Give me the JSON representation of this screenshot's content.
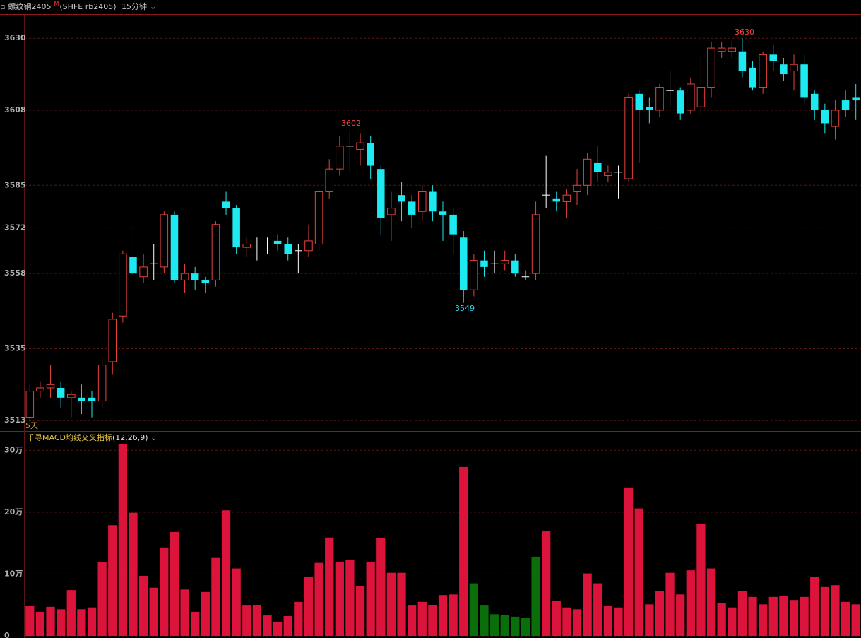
{
  "header": {
    "symbol": "螺纹钢2405",
    "badge": "M",
    "code": "(SHFE rb2405)",
    "period": "15分钟"
  },
  "chart_data": [
    {
      "type": "candlestick",
      "range_label": "5天",
      "up_color": "#e8433e",
      "down_color": "#1de9f0",
      "doji_color": "#ffffff",
      "grid": true,
      "ylim": [
        3509.8,
        3637.4
      ],
      "yticks": [
        3513,
        3535,
        3558,
        3572,
        3585,
        3608,
        3630
      ],
      "open": [
        3514,
        3522,
        3523,
        3523,
        3520,
        3520,
        3520,
        3519,
        3531,
        3545,
        3563,
        3557,
        3561,
        3560,
        3576,
        3556,
        3558,
        3556,
        3556,
        3580,
        3578,
        3566,
        3567,
        3567,
        3568,
        3567,
        3565,
        3565,
        3567,
        3583,
        3590,
        3597,
        3596,
        3598,
        3590,
        3576,
        3582,
        3580,
        3577,
        3583,
        3577,
        3576,
        3569,
        3553,
        3562,
        3561,
        3561,
        3562,
        3557,
        3558,
        3582,
        3581,
        3580,
        3583,
        3585,
        3592,
        3588,
        3589,
        3587,
        3613,
        3609,
        3608,
        3614,
        3614,
        3608,
        3609,
        3615,
        3626,
        3626,
        3626,
        3621,
        3615,
        3625,
        3622,
        3620,
        3622,
        3613,
        3608,
        3603,
        3611,
        3612
      ],
      "high": [
        3524,
        3525,
        3530,
        3525,
        3522,
        3524,
        3522,
        3532,
        3546,
        3565,
        3573,
        3564,
        3567,
        3577,
        3577,
        3561,
        3560,
        3557,
        3574,
        3583,
        3579,
        3569,
        3569,
        3569,
        3570,
        3569,
        3567,
        3573,
        3584,
        3593,
        3600,
        3602,
        3601,
        3600,
        3591,
        3583,
        3586,
        3582,
        3585,
        3585,
        3580,
        3578,
        3571,
        3564,
        3565,
        3565,
        3565,
        3564,
        3559,
        3580,
        3594,
        3583,
        3584,
        3590,
        3595,
        3597,
        3591,
        3591,
        3613,
        3614,
        3612,
        3616,
        3620,
        3615,
        3618,
        3625,
        3629,
        3629,
        3629,
        3630,
        3623,
        3626,
        3628,
        3624,
        3625,
        3625,
        3614,
        3610,
        3611,
        3614,
        3616
      ],
      "low": [
        3512,
        3520,
        3520,
        3517,
        3514,
        3515,
        3514,
        3517,
        3527,
        3543,
        3556,
        3555,
        3556,
        3558,
        3555,
        3552,
        3553,
        3552,
        3554,
        3576,
        3564,
        3563,
        3562,
        3564,
        3565,
        3562,
        3558,
        3563,
        3565,
        3581,
        3588,
        3589,
        3591,
        3587,
        3570,
        3568,
        3574,
        3572,
        3574,
        3574,
        3568,
        3564,
        3549,
        3551,
        3557,
        3558,
        3559,
        3557,
        3556,
        3556,
        3578,
        3577,
        3575,
        3579,
        3582,
        3586,
        3586,
        3581,
        3586,
        3592,
        3604,
        3606,
        3609,
        3605,
        3607,
        3606,
        3612,
        3624,
        3624,
        3618,
        3614,
        3613,
        3620,
        3617,
        3614,
        3610,
        3605,
        3601,
        3599,
        3606,
        3605
      ],
      "close": [
        3522,
        3523,
        3524,
        3520,
        3521,
        3519,
        3519,
        3530,
        3544,
        3564,
        3558,
        3560,
        3561,
        3576,
        3556,
        3558,
        3556,
        3555,
        3573,
        3578,
        3566,
        3567,
        3567,
        3567,
        3567,
        3564,
        3565,
        3568,
        3583,
        3590,
        3597,
        3597,
        3598,
        3591,
        3575,
        3578,
        3580,
        3576,
        3583,
        3577,
        3576,
        3570,
        3553,
        3562,
        3560,
        3561,
        3562,
        3558,
        3557,
        3576,
        3582,
        3580,
        3582,
        3585,
        3593,
        3589,
        3589,
        3589,
        3612,
        3608,
        3608,
        3615,
        3614,
        3607,
        3616,
        3615,
        3627,
        3627,
        3627,
        3620,
        3615,
        3625,
        3623,
        3619,
        3622,
        3612,
        3608,
        3604,
        3608,
        3608,
        3611
      ]
    },
    {
      "type": "bar",
      "title": "千寻MACD均线交叉指标",
      "params": "(12,26,9)",
      "grid": true,
      "ylim": [
        0,
        33
      ],
      "yticks": [
        0,
        {
          "value": 10,
          "label": "10万"
        },
        {
          "value": 20,
          "label": "20万"
        },
        {
          "value": 30,
          "label": "30万"
        }
      ],
      "values": [
        4.8,
        3.9,
        4.7,
        4.3,
        7.4,
        4.3,
        4.6,
        11.9,
        17.9,
        31,
        19.9,
        9.7,
        7.8,
        14.3,
        16.8,
        7.5,
        3.9,
        7.1,
        12.6,
        20.3,
        10.9,
        4.9,
        5.0,
        3.3,
        2.3,
        3.2,
        5.5,
        9.6,
        11.8,
        15.9,
        12,
        12.3,
        8,
        12,
        15.8,
        10.2,
        10.2,
        4.9,
        5.5,
        5,
        6.6,
        6.7,
        27.3,
        8.5,
        4.9,
        3.5,
        3.4,
        3.1,
        2.9,
        12.8,
        17,
        5.7,
        4.6,
        4.3,
        10.1,
        8.5,
        4.8,
        4.6,
        24,
        20.6,
        5.1,
        7.3,
        10.2,
        6.7,
        10.6,
        18.1,
        10.9,
        5.3,
        4.6,
        7.3,
        6.3,
        5.1,
        6.3,
        6.4,
        5.8,
        6.3,
        9.5,
        7.9,
        8.2,
        5.5,
        5.1
      ],
      "colors": [
        "#dc143c",
        "#dc143c",
        "#dc143c",
        "#dc143c",
        "#dc143c",
        "#dc143c",
        "#dc143c",
        "#dc143c",
        "#dc143c",
        "#dc143c",
        "#dc143c",
        "#dc143c",
        "#dc143c",
        "#dc143c",
        "#dc143c",
        "#dc143c",
        "#dc143c",
        "#dc143c",
        "#dc143c",
        "#dc143c",
        "#dc143c",
        "#dc143c",
        "#dc143c",
        "#dc143c",
        "#dc143c",
        "#dc143c",
        "#dc143c",
        "#dc143c",
        "#dc143c",
        "#dc143c",
        "#dc143c",
        "#dc143c",
        "#dc143c",
        "#dc143c",
        "#dc143c",
        "#dc143c",
        "#dc143c",
        "#dc143c",
        "#dc143c",
        "#dc143c",
        "#dc143c",
        "#dc143c",
        "#dc143c",
        "#0a6e0a",
        "#0a6e0a",
        "#0a6e0a",
        "#0a6e0a",
        "#0a6e0a",
        "#0a6e0a",
        "#0a6e0a",
        "#dc143c",
        "#dc143c",
        "#dc143c",
        "#dc143c",
        "#dc143c",
        "#dc143c",
        "#dc143c",
        "#dc143c",
        "#dc143c",
        "#dc143c",
        "#dc143c",
        "#dc143c",
        "#dc143c",
        "#dc143c",
        "#dc143c",
        "#dc143c",
        "#dc143c",
        "#dc143c",
        "#dc143c",
        "#dc143c",
        "#dc143c",
        "#dc143c",
        "#dc143c",
        "#dc143c",
        "#dc143c",
        "#dc143c",
        "#dc143c",
        "#dc143c",
        "#dc143c",
        "#dc143c",
        "#dc143c"
      ]
    }
  ]
}
